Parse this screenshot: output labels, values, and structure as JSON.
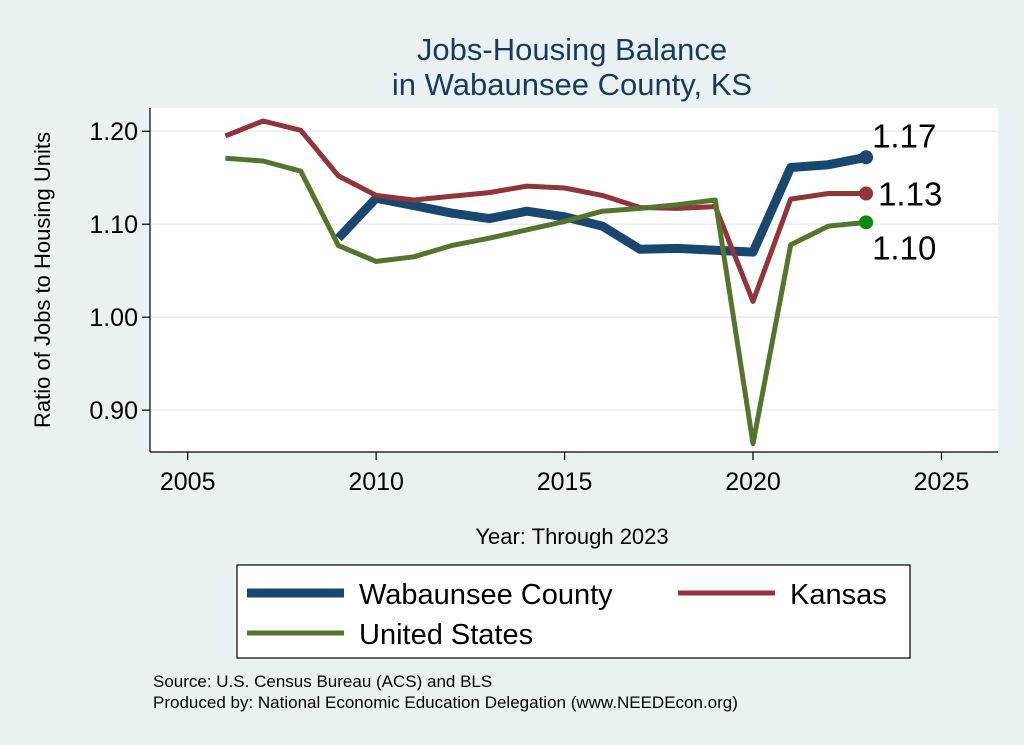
{
  "chart_data": {
    "type": "line",
    "title": [
      "Jobs-Housing Balance",
      "in Wabaunsee County, KS"
    ],
    "xlabel": "Year: Through 2023",
    "ylabel": "Ratio of Jobs to Housing Units",
    "xlim": [
      2004,
      2026.5
    ],
    "ylim": [
      0.855,
      1.225
    ],
    "x_ticks": [
      2005,
      2010,
      2015,
      2020,
      2025
    ],
    "y_ticks": [
      0.9,
      1.0,
      1.1,
      1.2
    ],
    "y_tick_labels": [
      "0.90",
      "1.00",
      "1.10",
      "1.20"
    ],
    "grid": true,
    "legend_position": "bottom",
    "series": [
      {
        "name": "Wabaunsee County",
        "color": "#1a476f",
        "width": 9,
        "end_label": "1.17",
        "points": [
          [
            2009,
            1.085
          ],
          [
            2010,
            1.128
          ],
          [
            2011,
            1.12
          ],
          [
            2012,
            1.112
          ],
          [
            2013,
            1.106
          ],
          [
            2014,
            1.114
          ],
          [
            2015,
            1.108
          ],
          [
            2016,
            1.098
          ],
          [
            2017,
            1.073
          ],
          [
            2018,
            1.074
          ],
          [
            2019,
            1.072
          ],
          [
            2020,
            1.07
          ],
          [
            2021,
            1.161
          ],
          [
            2022,
            1.164
          ],
          [
            2023,
            1.172
          ]
        ]
      },
      {
        "name": "Kansas",
        "color": "#90353b",
        "width": 5,
        "end_label": "1.13",
        "points": [
          [
            2006,
            1.195
          ],
          [
            2007,
            1.211
          ],
          [
            2008,
            1.201
          ],
          [
            2009,
            1.152
          ],
          [
            2010,
            1.131
          ],
          [
            2011,
            1.126
          ],
          [
            2012,
            1.13
          ],
          [
            2013,
            1.134
          ],
          [
            2014,
            1.141
          ],
          [
            2015,
            1.139
          ],
          [
            2016,
            1.131
          ],
          [
            2017,
            1.118
          ],
          [
            2018,
            1.117
          ],
          [
            2019,
            1.119
          ],
          [
            2020,
            1.017
          ],
          [
            2021,
            1.127
          ],
          [
            2022,
            1.133
          ],
          [
            2023,
            1.133
          ]
        ]
      },
      {
        "name": "United States",
        "color": "#55752f",
        "width": 5,
        "end_label": "1.10",
        "marker_color": "#0a8a12",
        "points": [
          [
            2006,
            1.171
          ],
          [
            2007,
            1.168
          ],
          [
            2008,
            1.157
          ],
          [
            2009,
            1.077
          ],
          [
            2010,
            1.06
          ],
          [
            2011,
            1.065
          ],
          [
            2012,
            1.077
          ],
          [
            2013,
            1.085
          ],
          [
            2014,
            1.094
          ],
          [
            2015,
            1.103
          ],
          [
            2016,
            1.114
          ],
          [
            2017,
            1.117
          ],
          [
            2018,
            1.121
          ],
          [
            2019,
            1.126
          ],
          [
            2020,
            0.864
          ],
          [
            2021,
            1.078
          ],
          [
            2022,
            1.098
          ],
          [
            2023,
            1.102
          ]
        ]
      }
    ]
  },
  "source": "Source: U.S. Census Bureau (ACS) and BLS",
  "produced_by": "Produced by: National Economic Education Delegation (www.NEEDEcon.org)"
}
